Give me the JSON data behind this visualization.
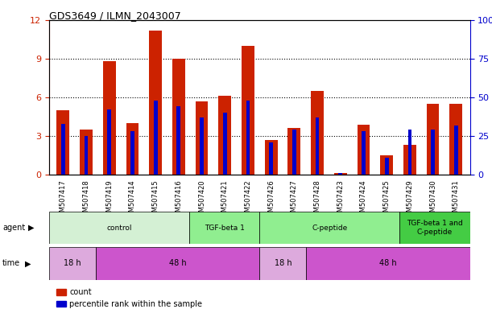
{
  "title": "GDS3649 / ILMN_2043007",
  "samples": [
    "GSM507417",
    "GSM507418",
    "GSM507419",
    "GSM507414",
    "GSM507415",
    "GSM507416",
    "GSM507420",
    "GSM507421",
    "GSM507422",
    "GSM507426",
    "GSM507427",
    "GSM507428",
    "GSM507423",
    "GSM507424",
    "GSM507425",
    "GSM507429",
    "GSM507430",
    "GSM507431"
  ],
  "counts": [
    5.0,
    3.5,
    8.8,
    4.0,
    11.2,
    9.0,
    5.7,
    6.1,
    10.0,
    2.7,
    3.6,
    6.5,
    0.1,
    3.9,
    1.5,
    2.3,
    5.5,
    5.5
  ],
  "percentiles": [
    33,
    25,
    42,
    28,
    48,
    44,
    37,
    40,
    48,
    21,
    29,
    37,
    1,
    28,
    11,
    29,
    29,
    32
  ],
  "bar_color": "#CC2200",
  "pct_color": "#0000CC",
  "ylim": [
    0,
    12
  ],
  "y2lim": [
    0,
    100
  ],
  "yticks": [
    0,
    3,
    6,
    9,
    12
  ],
  "y2ticks": [
    0,
    25,
    50,
    75,
    100
  ],
  "agent_groups": [
    {
      "label": "control",
      "start": 0,
      "end": 6,
      "color": "#d4f0d4"
    },
    {
      "label": "TGF-beta 1",
      "start": 6,
      "end": 9,
      "color": "#90ee90"
    },
    {
      "label": "C-peptide",
      "start": 9,
      "end": 15,
      "color": "#90ee90"
    },
    {
      "label": "TGF-beta 1 and\nC-peptide",
      "start": 15,
      "end": 18,
      "color": "#44cc44"
    }
  ],
  "time_groups": [
    {
      "label": "18 h",
      "start": 0,
      "end": 2,
      "color": "#ddaadd"
    },
    {
      "label": "48 h",
      "start": 2,
      "end": 9,
      "color": "#cc55cc"
    },
    {
      "label": "18 h",
      "start": 9,
      "end": 11,
      "color": "#ddaadd"
    },
    {
      "label": "48 h",
      "start": 11,
      "end": 18,
      "color": "#cc55cc"
    }
  ],
  "legend_count_label": "count",
  "legend_pct_label": "percentile rank within the sample",
  "tick_color_left": "#CC2200",
  "tick_color_right": "#0000CC"
}
